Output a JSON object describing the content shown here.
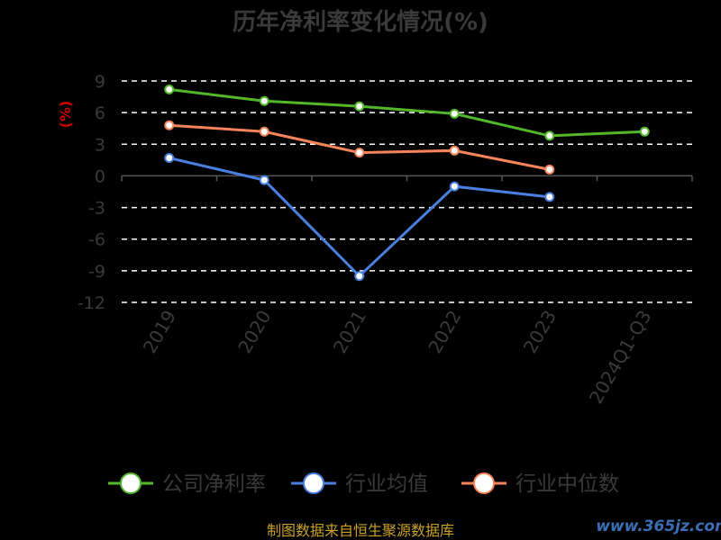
{
  "chart_data": {
    "type": "line",
    "title": "历年净利率变化情况(%)",
    "ylabel": "(%)",
    "xlabel": "",
    "categories": [
      "2019",
      "2020",
      "2021",
      "2022",
      "2023",
      "2024Q1-Q3"
    ],
    "yticks": [
      9,
      6,
      3,
      0,
      -3,
      -6,
      -9,
      -12
    ],
    "ylim": [
      -12,
      9
    ],
    "grid": true,
    "legend_position": "bottom",
    "series": [
      {
        "name": "公司净利率",
        "color": "#52b82a",
        "values": [
          8.2,
          7.1,
          6.6,
          5.9,
          3.8,
          4.2
        ]
      },
      {
        "name": "行业均值",
        "color": "#4a7fdf",
        "values": [
          1.7,
          -0.4,
          -9.5,
          -1.0,
          -2.0,
          null
        ]
      },
      {
        "name": "行业中位数",
        "color": "#f5845a",
        "values": [
          4.8,
          4.2,
          2.2,
          2.4,
          0.6,
          null
        ]
      }
    ]
  },
  "footer": {
    "source": "制图数据来自恒生聚源数据库",
    "watermark": "www.365jz.com"
  }
}
